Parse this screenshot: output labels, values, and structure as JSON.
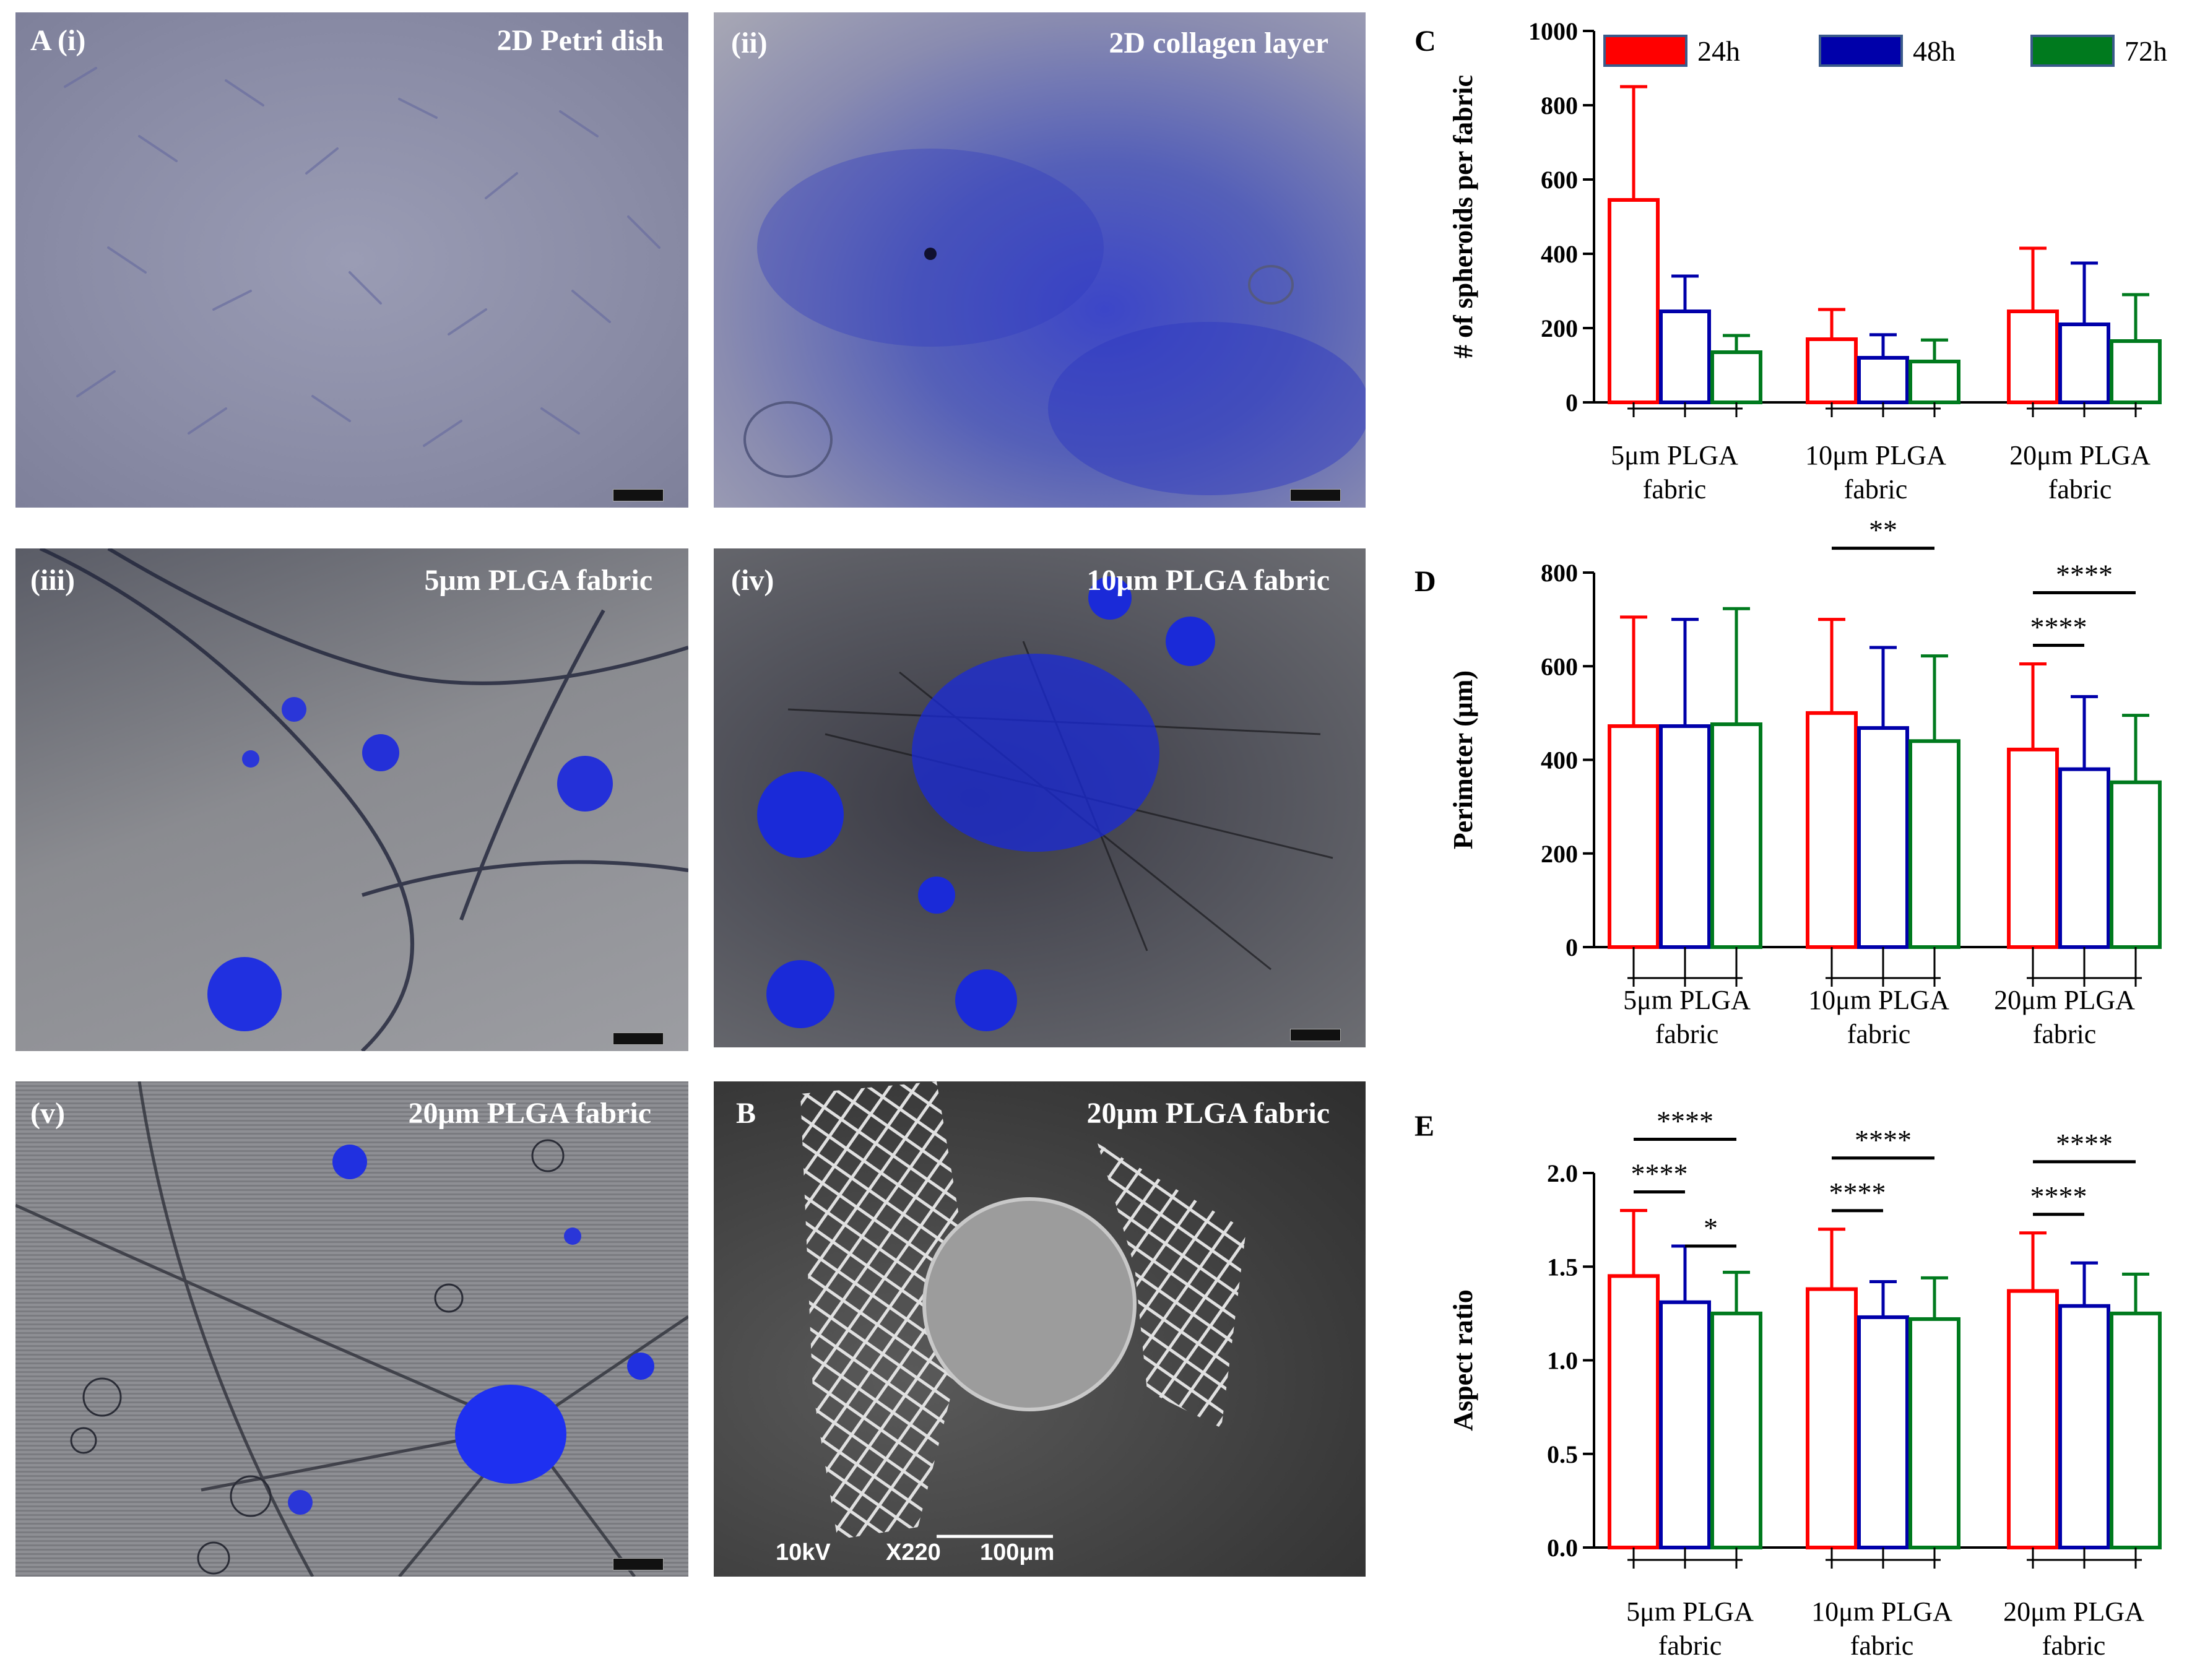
{
  "micrographs": [
    {
      "id": "Ai",
      "label": "A (i)",
      "title": "2D Petri dish"
    },
    {
      "id": "Aii",
      "label": "(ii)",
      "title": "2D collagen layer"
    },
    {
      "id": "Aiii",
      "label": "(iii)",
      "title": "5μm PLGA fabric"
    },
    {
      "id": "Aiv",
      "label": "(iv)",
      "title": "10μm PLGA fabric"
    },
    {
      "id": "Av",
      "label": "(v)",
      "title": "20μm PLGA fabric"
    },
    {
      "id": "B",
      "label": "B",
      "title": "20μm PLGA fabric"
    }
  ],
  "sem": {
    "voltage": "10kV",
    "magnification": "X220",
    "scale": "100μm"
  },
  "legend": [
    "24h",
    "48h",
    "72h"
  ],
  "colors": {
    "24h": "#ff0000",
    "48h": "#0000aa",
    "72h": "#007a1e"
  },
  "chart_data": [
    {
      "panel": "C",
      "type": "bar",
      "ylabel": "# of spheroids per fabric",
      "ylim": [
        0,
        1000
      ],
      "yticks": [
        "0",
        "200",
        "400",
        "600",
        "800",
        "1000"
      ],
      "categories": [
        [
          "5μm PLGA",
          "fabric"
        ],
        [
          "10μm PLGA",
          "fabric"
        ],
        [
          "20μm PLGA",
          "fabric"
        ]
      ],
      "series": [
        {
          "name": "24h",
          "values": [
            545,
            170,
            245
          ],
          "errors": [
            305,
            80,
            170
          ]
        },
        {
          "name": "48h",
          "values": [
            245,
            120,
            210
          ],
          "errors": [
            95,
            62,
            165
          ]
        },
        {
          "name": "72h",
          "values": [
            135,
            110,
            165
          ],
          "errors": [
            45,
            58,
            125
          ]
        }
      ],
      "significance": []
    },
    {
      "panel": "D",
      "type": "bar",
      "ylabel": "Perimeter (μm)",
      "ylim": [
        0,
        800
      ],
      "yticks": [
        "0",
        "200",
        "400",
        "600",
        "800"
      ],
      "categories": [
        [
          "5μm PLGA",
          "fabric"
        ],
        [
          "10μm PLGA",
          "fabric"
        ],
        [
          "20μm PLGA",
          "fabric"
        ]
      ],
      "series": [
        {
          "name": "24h",
          "values": [
            472,
            500,
            422
          ],
          "errors": [
            233,
            200,
            183
          ]
        },
        {
          "name": "48h",
          "values": [
            472,
            468,
            380
          ],
          "errors": [
            228,
            172,
            155
          ]
        },
        {
          "name": "72h",
          "values": [
            476,
            440,
            352
          ],
          "errors": [
            247,
            182,
            143
          ]
        }
      ],
      "significance": [
        {
          "group": 1,
          "from": 0,
          "to": 2,
          "label": "**"
        },
        {
          "group": 2,
          "from": 0,
          "to": 1,
          "label": "****"
        },
        {
          "group": 2,
          "from": 0,
          "to": 2,
          "label": "****"
        }
      ]
    },
    {
      "panel": "E",
      "type": "bar",
      "ylabel": "Aspect ratio",
      "ylim": [
        0,
        2
      ],
      "yticks": [
        "0.0",
        "0.5",
        "1.0",
        "1.5",
        "2.0"
      ],
      "categories": [
        [
          "5μm PLGA",
          "fabric"
        ],
        [
          "10μm PLGA",
          "fabric"
        ],
        [
          "20μm PLGA",
          "fabric"
        ]
      ],
      "series": [
        {
          "name": "24h",
          "values": [
            1.45,
            1.38,
            1.37
          ],
          "errors": [
            0.35,
            0.32,
            0.31
          ]
        },
        {
          "name": "48h",
          "values": [
            1.31,
            1.23,
            1.29
          ],
          "errors": [
            0.3,
            0.19,
            0.23
          ]
        },
        {
          "name": "72h",
          "values": [
            1.25,
            1.22,
            1.25
          ],
          "errors": [
            0.22,
            0.22,
            0.21
          ]
        }
      ],
      "significance": [
        {
          "group": 0,
          "from": 0,
          "to": 1,
          "label": "****"
        },
        {
          "group": 0,
          "from": 0,
          "to": 2,
          "label": "****"
        },
        {
          "group": 0,
          "from": 1,
          "to": 2,
          "label": "*"
        },
        {
          "group": 1,
          "from": 0,
          "to": 1,
          "label": "****"
        },
        {
          "group": 1,
          "from": 0,
          "to": 2,
          "label": "****"
        },
        {
          "group": 2,
          "from": 0,
          "to": 1,
          "label": "****"
        },
        {
          "group": 2,
          "from": 0,
          "to": 2,
          "label": "****"
        }
      ]
    }
  ]
}
